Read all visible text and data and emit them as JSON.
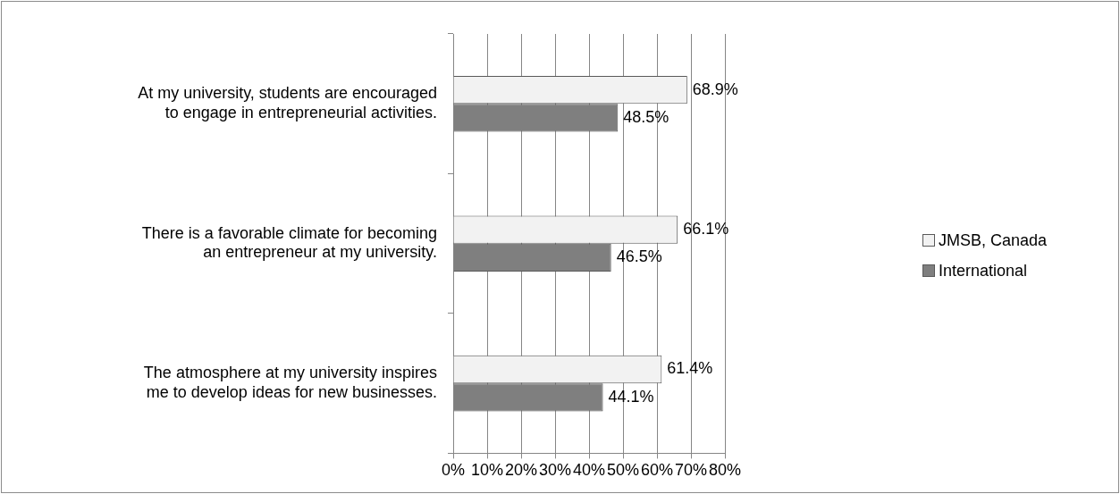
{
  "chart_data": {
    "type": "bar",
    "orientation": "horizontal",
    "categories": [
      "At my university, students are encouraged to engage in entrepreneurial activities.",
      "There is a favorable climate for becoming an entrepreneur at my university.",
      "The atmosphere at my university inspires me to develop ideas for new businesses."
    ],
    "series": [
      {
        "name": "JMSB, Canada",
        "color": "#f2f2f2",
        "values": [
          68.9,
          66.1,
          61.4
        ],
        "value_labels": [
          "68.9%",
          "66.1%",
          "61.4%"
        ]
      },
      {
        "name": "International",
        "color": "#7f7f7f",
        "values": [
          48.5,
          46.5,
          44.1
        ],
        "value_labels": [
          "48.5%",
          "46.5%",
          "44.1%"
        ]
      }
    ],
    "xlim": [
      0,
      80
    ],
    "xticks": [
      {
        "value": 0,
        "label": "0%"
      },
      {
        "value": 10,
        "label": "10%"
      },
      {
        "value": 20,
        "label": "20%"
      },
      {
        "value": 30,
        "label": "30%"
      },
      {
        "value": 40,
        "label": "40%"
      },
      {
        "value": 50,
        "label": "50%"
      },
      {
        "value": 60,
        "label": "60%"
      },
      {
        "value": 70,
        "label": "70%"
      },
      {
        "value": 80,
        "label": "80%"
      }
    ],
    "grid": "x",
    "legend": "right"
  }
}
